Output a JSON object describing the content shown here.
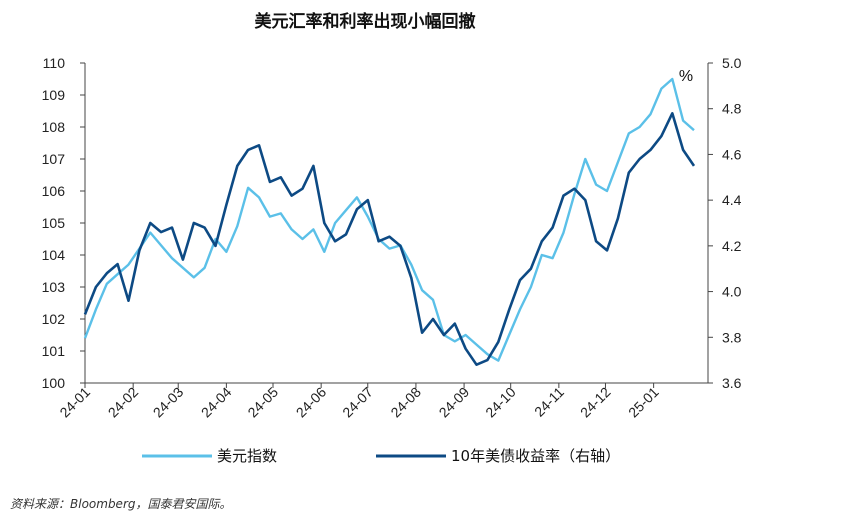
{
  "chart_data": {
    "type": "line",
    "title": "美元汇率和利率出现小幅回撤",
    "source": "资料来源：Bloomberg，国泰君安国际。",
    "x_tick_labels": [
      "24-01",
      "24-02",
      "24-03",
      "24-04",
      "24-05",
      "24-06",
      "24-07",
      "24-08",
      "24-09",
      "24-10",
      "24-11",
      "24-12",
      "25-01"
    ],
    "left_axis": {
      "ylim": [
        100,
        110
      ],
      "ticks": [
        "100",
        "101",
        "102",
        "103",
        "104",
        "105",
        "106",
        "107",
        "108",
        "109",
        "110"
      ]
    },
    "right_axis": {
      "ylim": [
        3.6,
        5.0
      ],
      "ticks": [
        "3.6",
        "3.8",
        "4.0",
        "4.2",
        "4.4",
        "4.6",
        "4.8",
        "5.0"
      ],
      "unit": "%"
    },
    "grid": false,
    "legend_position": "bottom",
    "series": [
      {
        "name": "美元指数",
        "axis": "left",
        "color": "#5BC0E8",
        "x": [
          "2024-01-01",
          "2024-01-08",
          "2024-01-15",
          "2024-01-22",
          "2024-01-29",
          "2024-02-05",
          "2024-02-12",
          "2024-02-19",
          "2024-02-26",
          "2024-03-04",
          "2024-03-11",
          "2024-03-18",
          "2024-03-25",
          "2024-04-01",
          "2024-04-08",
          "2024-04-15",
          "2024-04-22",
          "2024-04-29",
          "2024-05-06",
          "2024-05-13",
          "2024-05-20",
          "2024-05-27",
          "2024-06-03",
          "2024-06-10",
          "2024-06-17",
          "2024-06-24",
          "2024-07-01",
          "2024-07-08",
          "2024-07-15",
          "2024-07-22",
          "2024-07-29",
          "2024-08-05",
          "2024-08-12",
          "2024-08-19",
          "2024-08-26",
          "2024-09-02",
          "2024-09-09",
          "2024-09-16",
          "2024-09-23",
          "2024-09-30",
          "2024-10-07",
          "2024-10-14",
          "2024-10-21",
          "2024-10-28",
          "2024-11-04",
          "2024-11-11",
          "2024-11-18",
          "2024-11-25",
          "2024-12-02",
          "2024-12-09",
          "2024-12-16",
          "2024-12-23",
          "2024-12-30",
          "2025-01-06",
          "2025-01-13",
          "2025-01-20",
          "2025-01-27"
        ],
        "values": [
          101.4,
          102.3,
          103.1,
          103.4,
          103.7,
          104.2,
          104.7,
          104.3,
          103.9,
          103.6,
          103.3,
          103.6,
          104.5,
          104.1,
          104.9,
          106.1,
          105.8,
          105.2,
          105.3,
          104.8,
          104.5,
          104.8,
          104.1,
          105.0,
          105.4,
          105.8,
          105.2,
          104.5,
          104.2,
          104.3,
          103.7,
          102.9,
          102.6,
          101.5,
          101.3,
          101.5,
          101.2,
          100.9,
          100.7,
          101.5,
          102.3,
          103.0,
          104.0,
          103.9,
          104.7,
          105.9,
          107.0,
          106.2,
          106.0,
          106.9,
          107.8,
          108.0,
          108.4,
          109.2,
          109.5,
          108.2,
          107.9
        ]
      },
      {
        "name": "10年美债收益率（右轴）",
        "axis": "right",
        "color": "#0D4A84",
        "x": [
          "2024-01-01",
          "2024-01-08",
          "2024-01-15",
          "2024-01-22",
          "2024-01-29",
          "2024-02-05",
          "2024-02-12",
          "2024-02-19",
          "2024-02-26",
          "2024-03-04",
          "2024-03-11",
          "2024-03-18",
          "2024-03-25",
          "2024-04-01",
          "2024-04-08",
          "2024-04-15",
          "2024-04-22",
          "2024-04-29",
          "2024-05-06",
          "2024-05-13",
          "2024-05-20",
          "2024-05-27",
          "2024-06-03",
          "2024-06-10",
          "2024-06-17",
          "2024-06-24",
          "2024-07-01",
          "2024-07-08",
          "2024-07-15",
          "2024-07-22",
          "2024-07-29",
          "2024-08-05",
          "2024-08-12",
          "2024-08-19",
          "2024-08-26",
          "2024-09-02",
          "2024-09-09",
          "2024-09-16",
          "2024-09-23",
          "2024-09-30",
          "2024-10-07",
          "2024-10-14",
          "2024-10-21",
          "2024-10-28",
          "2024-11-04",
          "2024-11-11",
          "2024-11-18",
          "2024-11-25",
          "2024-12-02",
          "2024-12-09",
          "2024-12-16",
          "2024-12-23",
          "2024-12-30",
          "2025-01-06",
          "2025-01-13",
          "2025-01-20",
          "2025-01-27"
        ],
        "values": [
          3.9,
          4.02,
          4.08,
          4.12,
          3.96,
          4.18,
          4.3,
          4.26,
          4.28,
          4.14,
          4.3,
          4.28,
          4.2,
          4.38,
          4.55,
          4.62,
          4.64,
          4.48,
          4.5,
          4.42,
          4.45,
          4.55,
          4.3,
          4.22,
          4.25,
          4.36,
          4.4,
          4.22,
          4.24,
          4.2,
          4.06,
          3.82,
          3.88,
          3.81,
          3.86,
          3.75,
          3.68,
          3.7,
          3.78,
          3.92,
          4.05,
          4.1,
          4.22,
          4.28,
          4.42,
          4.45,
          4.4,
          4.22,
          4.18,
          4.32,
          4.52,
          4.58,
          4.62,
          4.68,
          4.78,
          4.62,
          4.55
        ]
      }
    ]
  }
}
